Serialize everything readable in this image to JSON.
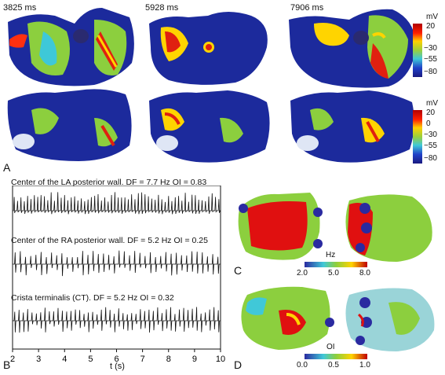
{
  "panel_a": {
    "letter": "A",
    "times": [
      "3825 ms",
      "5928 ms",
      "7906 ms"
    ],
    "colorbar_unit": "mV",
    "colorbar_ticks": [
      "20",
      "0",
      "−30",
      "−55",
      "−80"
    ],
    "colorbar_colors": [
      "#b00000",
      "#ff2000",
      "#ffd000",
      "#9ad03c",
      "#3ec8d8",
      "#2040c8",
      "#1a1a80"
    ]
  },
  "panel_b": {
    "letter": "B",
    "traces": [
      {
        "title": "Center of the LA posterior wall. DF = 7.7 Hz OI = 0.83"
      },
      {
        "title": "Center of the RA posterior wall. DF = 5.2 Hz OI = 0.25"
      },
      {
        "title": "Crista terminalis (CT). DF = 5.2 Hz OI = 0.32"
      }
    ],
    "x_ticks": [
      "2",
      "3",
      "4",
      "5",
      "6",
      "7",
      "8",
      "9",
      "10"
    ],
    "x_label": "t (s)"
  },
  "panel_c": {
    "letter": "C",
    "unit": "Hz",
    "ticks": [
      "2.0",
      "5.0",
      "8.0"
    ]
  },
  "panel_d": {
    "letter": "D",
    "unit": "OI",
    "ticks": [
      "0.0",
      "0.5",
      "1.0"
    ]
  },
  "colors": {
    "blue_dark": "#1a2a9a",
    "green": "#7ac83c",
    "red": "#e01010",
    "yellow": "#ffd400",
    "cyan": "#40c8d8"
  }
}
